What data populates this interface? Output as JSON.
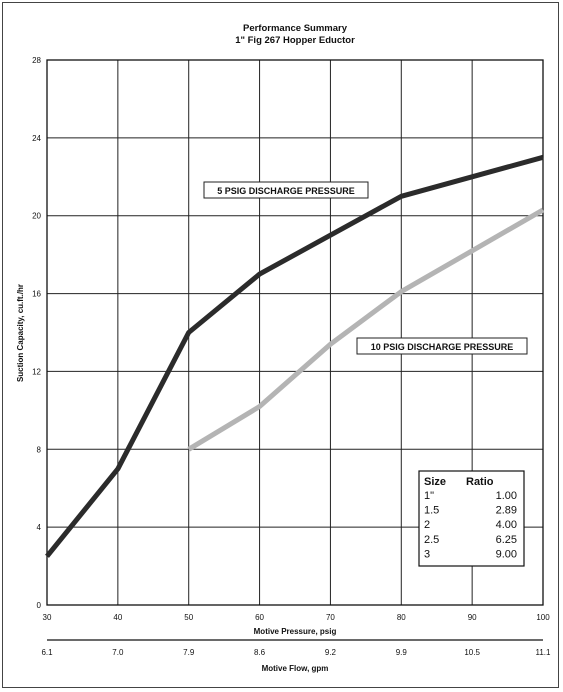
{
  "chart_data": {
    "type": "line",
    "title": "Performance Summary",
    "subtitle": "1\" Fig 267 Hopper Eductor",
    "ylabel": "Suction Capacity, cu.ft./hr",
    "xlabel": "Motive Pressure, psig",
    "x2label": "Motive Flow, gpm",
    "xlim": [
      30,
      100
    ],
    "ylim": [
      0,
      28
    ],
    "xticks": [
      "30",
      "40",
      "50",
      "60",
      "70",
      "80",
      "90",
      "100"
    ],
    "x2ticks": [
      "6.1",
      "7.0",
      "7.9",
      "8.6",
      "9.2",
      "9.9",
      "10.5",
      "11.1"
    ],
    "yticks": [
      "0",
      "4",
      "8",
      "12",
      "16",
      "20",
      "24",
      "28"
    ],
    "grid": true,
    "series": [
      {
        "name": "5 PSIG DISCHARGE PRESSURE",
        "color": "#2b2b2b",
        "x": [
          30,
          40,
          50,
          60,
          70,
          80,
          90,
          100
        ],
        "y": [
          2.5,
          7.0,
          14.0,
          17.0,
          19.0,
          21.0,
          22.0,
          23.0
        ]
      },
      {
        "name": "10 PSIG DISCHARGE PRESSURE",
        "color": "#b4b4b4",
        "x": [
          50,
          60,
          70,
          80,
          90,
          100
        ],
        "y": [
          8.0,
          10.2,
          13.4,
          16.1,
          18.2,
          20.3
        ]
      }
    ],
    "size_table": {
      "headers": [
        "Size",
        "Ratio"
      ],
      "rows": [
        [
          "1\"",
          "1.00"
        ],
        [
          "1.5",
          "2.89"
        ],
        [
          "2",
          "4.00"
        ],
        [
          "2.5",
          "6.25"
        ],
        [
          "3",
          "9.00"
        ]
      ]
    }
  }
}
